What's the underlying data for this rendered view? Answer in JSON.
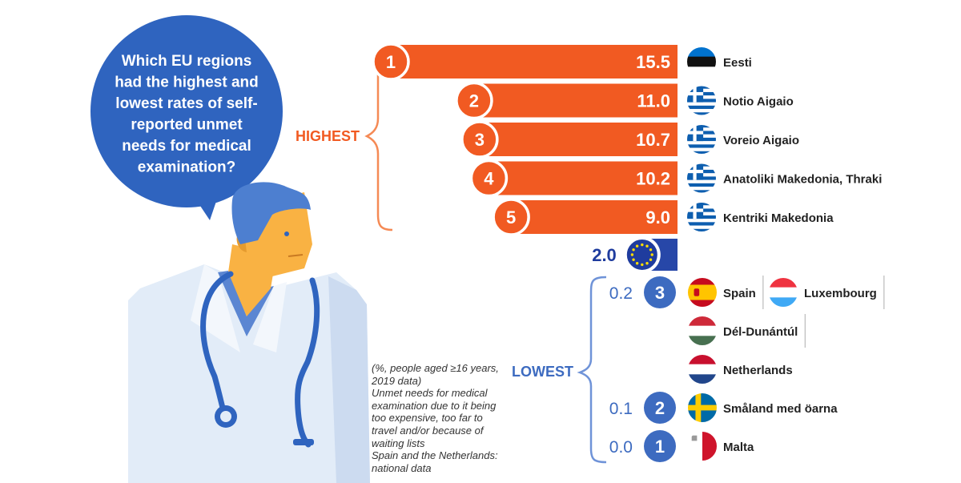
{
  "question": "Which EU regions had the highest and lowest rates of self-reported unmet needs for medical examination?",
  "question_lines": [
    "Which EU regions",
    "had the highest and",
    "lowest rates of self-",
    "reported unmet",
    "needs for medical",
    "examination?"
  ],
  "highest_label": "HIGHEST",
  "lowest_label": "LOWEST",
  "colors": {
    "orange": "#F15A22",
    "blue": "#3D6BC0",
    "bubble": "#2F64BF",
    "eu_blue": "#2747A8",
    "bracket_orange": "#F58A55",
    "bracket_blue": "#6F93D8"
  },
  "note_lines": [
    "(%, people aged ≥16 years,",
    "2019 data)",
    "Unmet needs for medical",
    "examination due to it being",
    "too expensive, too far to",
    "travel and/or because of",
    "waiting lists",
    "Spain and the Netherlands:",
    "national data"
  ],
  "chart_data": {
    "type": "bar",
    "title": "Which EU regions had the highest and lowest rates of self-reported unmet needs for medical examination?",
    "unit": "%, people aged ≥16 years, 2019 data",
    "highest": [
      {
        "rank": "1",
        "value": 15.5,
        "label": "15.5",
        "region": "Eesti",
        "flag": "estonia"
      },
      {
        "rank": "2",
        "value": 11.0,
        "label": "11.0",
        "region": "Notio Aigaio",
        "flag": "greece"
      },
      {
        "rank": "3",
        "value": 10.7,
        "label": "10.7",
        "region": "Voreio Aigaio",
        "flag": "greece"
      },
      {
        "rank": "4",
        "value": 10.2,
        "label": "10.2",
        "region": "Anatoliki Makedonia, Thraki",
        "flag": "greece"
      },
      {
        "rank": "5",
        "value": 9.0,
        "label": "9.0",
        "region": "Kentriki Makedonia",
        "flag": "greece"
      }
    ],
    "eu": {
      "value": 2.0,
      "label": "2.0",
      "flag": "eu"
    },
    "lowest": [
      {
        "rank": "3",
        "value": 0.2,
        "label": "0.2",
        "regions": [
          {
            "name": "Spain",
            "flag": "spain"
          },
          {
            "name": "Luxembourg",
            "flag": "luxembourg"
          },
          {
            "name": "Dél-Dunántúl",
            "flag": "hungary"
          },
          {
            "name": "Netherlands",
            "flag": "netherlands"
          }
        ]
      },
      {
        "rank": "2",
        "value": 0.1,
        "label": "0.1",
        "regions": [
          {
            "name": "Småland med öarna",
            "flag": "sweden"
          }
        ]
      },
      {
        "rank": "1",
        "value": 0.0,
        "label": "0.0",
        "regions": [
          {
            "name": "Malta",
            "flag": "malta"
          }
        ]
      }
    ]
  }
}
